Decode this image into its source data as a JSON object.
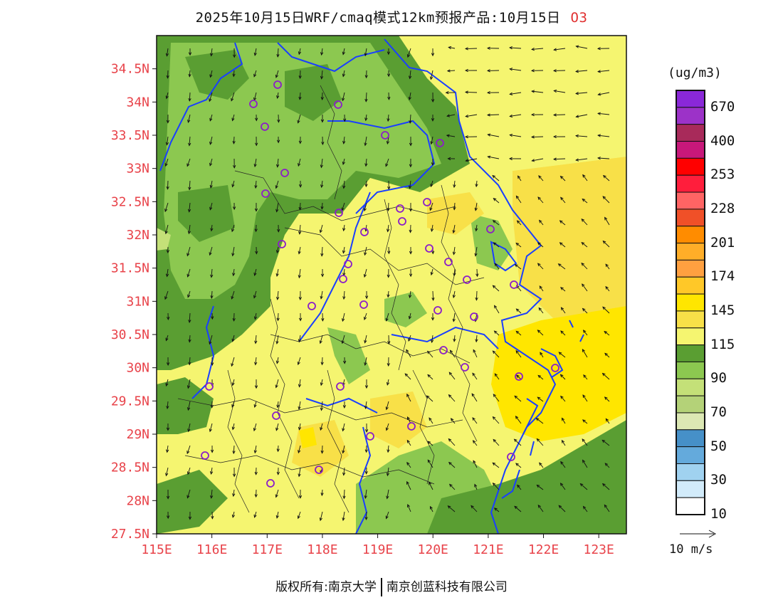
{
  "title": {
    "text": "2025年10月15日WRF/cmaq模式12km预报产品:10月15日",
    "variable": "O3"
  },
  "map": {
    "lat_labels": [
      "34.5N",
      "34N",
      "33.5N",
      "33N",
      "32.5N",
      "32N",
      "31.5N",
      "31N",
      "30.5N",
      "30N",
      "29.5N",
      "29N",
      "28.5N",
      "28N",
      "27.5N"
    ],
    "lat_values": [
      34.5,
      34,
      33.5,
      33,
      32.5,
      32,
      31.5,
      31,
      30.5,
      30,
      29.5,
      29,
      28.5,
      28,
      27.5
    ],
    "lon_labels": [
      "115E",
      "116E",
      "117E",
      "118E",
      "119E",
      "120E",
      "121E",
      "122E",
      "123E"
    ],
    "lon_values": [
      115,
      116,
      117,
      118,
      119,
      120,
      121,
      122,
      123
    ],
    "lon_range": [
      115,
      123.5
    ],
    "lat_range": [
      27.5,
      35
    ],
    "colors": {
      "label": "#e8434a",
      "coast": "#1a3fff",
      "station": "#8b1ec8"
    }
  },
  "colorbar": {
    "unit": "(ug/m3)",
    "labels": [
      "670",
      "400",
      "253",
      "228",
      "201",
      "174",
      "145",
      "115",
      "90",
      "70",
      "50",
      "30",
      "10"
    ],
    "colors": [
      "#8a28d8",
      "#9c32c8",
      "#a82a5a",
      "#c8187a",
      "#ff0000",
      "#ff1e3c",
      "#ff6464",
      "#f05028",
      "#ff8c00",
      "#ffae28",
      "#ffa040",
      "#ffc828",
      "#ffe600",
      "#f8e048",
      "#f5f570",
      "#5a9e32",
      "#8cc850",
      "#c4e078",
      "#b4d278",
      "#dce8b4",
      "#4690c8",
      "#64aadc",
      "#a0d2f0",
      "#d2ebfa",
      "#ffffff"
    ],
    "ref_vector": "10 m/s"
  },
  "copyright": {
    "owner": "版权所有:南京大学",
    "partner": "南京创蓝科技有限公司"
  }
}
